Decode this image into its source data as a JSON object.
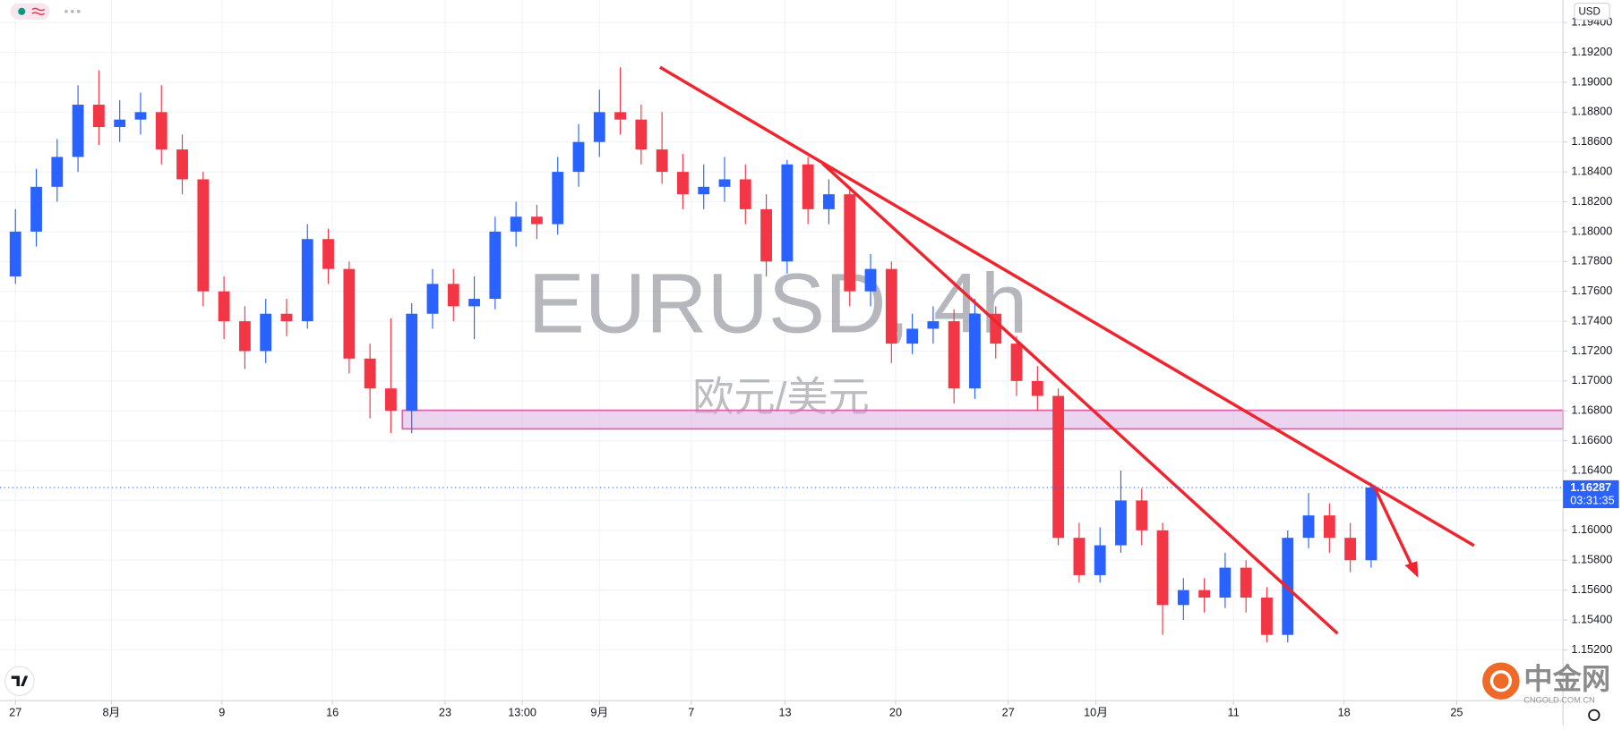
{
  "chart_data": {
    "type": "candlestick",
    "title": "EURUSD, 4h",
    "subtitle": "欧元/美元",
    "currency": "USD",
    "last_price": 1.16287,
    "countdown": "03:31:35",
    "watermark_logo": "中金网",
    "watermark_site": "CNGOLD.COM.CN",
    "up_color": "#2962ff",
    "down_color": "#f23645",
    "grid": true,
    "open": [
      1.177,
      1.18,
      1.183,
      1.185,
      1.1885,
      1.187,
      1.1875,
      1.188,
      1.1855,
      1.1835,
      1.176,
      1.174,
      1.172,
      1.1745,
      1.174,
      1.1795,
      1.1775,
      1.1715,
      1.1695,
      1.168,
      1.1745,
      1.1765,
      1.175,
      1.1755,
      1.18,
      1.181,
      1.1805,
      1.184,
      1.186,
      1.188,
      1.1875,
      1.1855,
      1.184,
      1.1825,
      1.183,
      1.1835,
      1.1815,
      1.178,
      1.1845,
      1.1815,
      1.1825,
      1.176,
      1.1775,
      1.1725,
      1.1735,
      1.174,
      1.1695,
      1.1745,
      1.1725,
      1.17,
      1.169,
      1.1595,
      1.157,
      1.159,
      1.162,
      1.16,
      1.155,
      1.156,
      1.1555,
      1.1575,
      1.1555,
      1.153,
      1.1595,
      1.161,
      1.1595,
      1.158
    ],
    "high": [
      1.1815,
      1.1842,
      1.1862,
      1.1898,
      1.1908,
      1.1888,
      1.1893,
      1.1898,
      1.1865,
      1.184,
      1.177,
      1.175,
      1.1755,
      1.1755,
      1.1805,
      1.1802,
      1.178,
      1.1725,
      1.1742,
      1.1752,
      1.1775,
      1.1775,
      1.177,
      1.181,
      1.182,
      1.1818,
      1.185,
      1.1872,
      1.1895,
      1.191,
      1.1885,
      1.188,
      1.1852,
      1.1845,
      1.185,
      1.1845,
      1.1825,
      1.1848,
      1.185,
      1.1835,
      1.183,
      1.1785,
      1.178,
      1.1745,
      1.175,
      1.1748,
      1.1755,
      1.175,
      1.173,
      1.171,
      1.1695,
      1.1605,
      1.1602,
      1.164,
      1.1628,
      1.1605,
      1.1568,
      1.1568,
      1.1585,
      1.158,
      1.1562,
      1.16,
      1.1625,
      1.1618,
      1.1605,
      1.1632
    ],
    "low": [
      1.1765,
      1.179,
      1.182,
      1.184,
      1.1858,
      1.186,
      1.1865,
      1.1845,
      1.1825,
      1.175,
      1.1728,
      1.1708,
      1.1712,
      1.173,
      1.1735,
      1.1765,
      1.1705,
      1.1675,
      1.1665,
      1.1665,
      1.1735,
      1.174,
      1.1728,
      1.1748,
      1.179,
      1.1795,
      1.1798,
      1.183,
      1.185,
      1.1865,
      1.1845,
      1.1832,
      1.1815,
      1.1815,
      1.182,
      1.1805,
      1.177,
      1.1772,
      1.1805,
      1.1805,
      1.175,
      1.175,
      1.1712,
      1.1718,
      1.1725,
      1.1685,
      1.1688,
      1.1715,
      1.169,
      1.168,
      1.159,
      1.1565,
      1.1565,
      1.1585,
      1.159,
      1.153,
      1.154,
      1.1545,
      1.1548,
      1.1545,
      1.1525,
      1.1525,
      1.1588,
      1.1585,
      1.1572,
      1.1575
    ],
    "close": [
      1.18,
      1.183,
      1.185,
      1.1885,
      1.187,
      1.1875,
      1.188,
      1.1855,
      1.1835,
      1.176,
      1.174,
      1.172,
      1.1745,
      1.174,
      1.1795,
      1.1775,
      1.1715,
      1.1695,
      1.168,
      1.1745,
      1.1765,
      1.175,
      1.1755,
      1.18,
      1.181,
      1.1805,
      1.184,
      1.186,
      1.188,
      1.1875,
      1.1855,
      1.184,
      1.1825,
      1.183,
      1.1835,
      1.1815,
      1.178,
      1.1845,
      1.1815,
      1.1825,
      1.176,
      1.1775,
      1.1725,
      1.1735,
      1.174,
      1.1695,
      1.1745,
      1.1725,
      1.17,
      1.169,
      1.1595,
      1.157,
      1.159,
      1.162,
      1.16,
      1.155,
      1.156,
      1.1555,
      1.1575,
      1.1555,
      1.153,
      1.1595,
      1.161,
      1.1595,
      1.158,
      1.16287
    ],
    "xlim": [
      -0.74,
      74.2
    ],
    "xticks": [
      {
        "value": 0,
        "label": "27"
      },
      {
        "value": 4.6,
        "label": "8月"
      },
      {
        "value": 9.9,
        "label": "9"
      },
      {
        "value": 15.2,
        "label": "16"
      },
      {
        "value": 20.6,
        "label": "23"
      },
      {
        "value": 24.3,
        "label": "13:00"
      },
      {
        "value": 28.0,
        "label": "9月"
      },
      {
        "value": 32.4,
        "label": "7"
      },
      {
        "value": 36.9,
        "label": "13"
      },
      {
        "value": 42.2,
        "label": "20"
      },
      {
        "value": 47.6,
        "label": "27"
      },
      {
        "value": 51.8,
        "label": "10月"
      },
      {
        "value": 58.4,
        "label": "11"
      },
      {
        "value": 63.7,
        "label": "18"
      },
      {
        "value": 69.1,
        "label": "25"
      }
    ],
    "ylim": [
      1.1486,
      1.1955
    ],
    "yticks": [
      {
        "value": 1.152,
        "label": "1.15200"
      },
      {
        "value": 1.154,
        "label": "1.15400"
      },
      {
        "value": 1.156,
        "label": "1.15600"
      },
      {
        "value": 1.158,
        "label": "1.15800"
      },
      {
        "value": 1.16,
        "label": "1.16000"
      },
      {
        "value": 1.162,
        "label": "1.16200"
      },
      {
        "value": 1.164,
        "label": "1.16400"
      },
      {
        "value": 1.166,
        "label": "1.16600"
      },
      {
        "value": 1.168,
        "label": "1.16800"
      },
      {
        "value": 1.17,
        "label": "1.17000"
      },
      {
        "value": 1.172,
        "label": "1.17200"
      },
      {
        "value": 1.174,
        "label": "1.17400"
      },
      {
        "value": 1.176,
        "label": "1.17600"
      },
      {
        "value": 1.178,
        "label": "1.17800"
      },
      {
        "value": 1.18,
        "label": "1.18000"
      },
      {
        "value": 1.182,
        "label": "1.18200"
      },
      {
        "value": 1.184,
        "label": "1.18400"
      },
      {
        "value": 1.186,
        "label": "1.18600"
      },
      {
        "value": 1.188,
        "label": "1.18800"
      },
      {
        "value": 1.19,
        "label": "1.19000"
      },
      {
        "value": 1.192,
        "label": "1.19200"
      },
      {
        "value": 1.194,
        "label": "1.19400"
      }
    ]
  }
}
